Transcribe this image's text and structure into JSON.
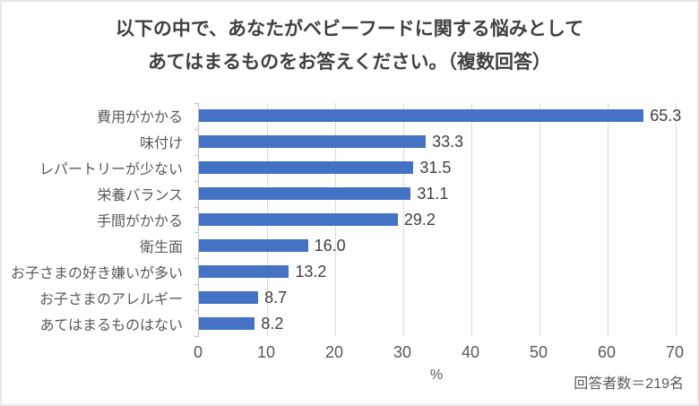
{
  "title": {
    "line1": "以下の中で、あなたがベビーフードに関する悩みとして",
    "line2": "あてはまるものをお答えください。（複数回答）"
  },
  "chart_data": {
    "type": "bar",
    "orientation": "horizontal",
    "title": "以下の中で、あなたがベビーフードに関する悩みとして あてはまるものをお答えください。（複数回答）",
    "categories": [
      "費用がかかる",
      "味付け",
      "レパートリーが少ない",
      "栄養バランス",
      "手間がかかる",
      "衛生面",
      "お子さまの好き嫌いが多い",
      "お子さまのアレルギー",
      "あてはまるものはない"
    ],
    "values": [
      65.3,
      33.3,
      31.5,
      31.1,
      29.2,
      16.0,
      13.2,
      8.7,
      8.2
    ],
    "value_labels": [
      "65.3",
      "33.3",
      "31.5",
      "31.1",
      "29.2",
      "16.0",
      "13.2",
      "8.7",
      "8.2"
    ],
    "xlabel": "%",
    "ylabel": "",
    "xlim": [
      0,
      70
    ],
    "xticks": [
      0,
      10,
      20,
      30,
      40,
      50,
      60,
      70
    ],
    "grid": true,
    "legend": false,
    "bar_color": "#4472c4",
    "gridline_color": "#d9d9d9",
    "axis_color": "#bfbfbf"
  },
  "footnote": "回答者数＝219名"
}
